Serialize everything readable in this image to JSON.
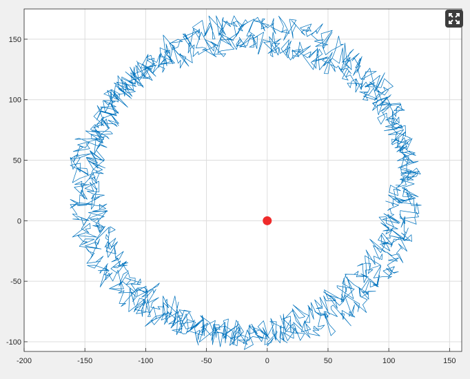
{
  "chart_data": {
    "type": "line",
    "title": "",
    "xlabel": "",
    "ylabel": "",
    "xlim": [
      -200,
      160
    ],
    "ylim": [
      -108,
      175
    ],
    "xticks": [
      -200,
      -150,
      -100,
      -50,
      0,
      50,
      100,
      150
    ],
    "yticks": [
      -100,
      -50,
      0,
      50,
      100,
      150
    ],
    "xtick_labels": [
      "-200",
      "-150",
      "-100",
      "-50",
      "0",
      "50",
      "100",
      "150"
    ],
    "ytick_labels": [
      "-100",
      "-50",
      "0",
      "50",
      "100",
      "150"
    ],
    "grid": true,
    "series": [
      {
        "style": "noisy random-walk trajectory forming a ring",
        "color": "#0072bd",
        "center": [
          -18,
          32
        ],
        "inner_radius_x": 120,
        "inner_radius_y": 110,
        "outer_radius_x": 145,
        "outer_radius_y": 140,
        "x_range": [
          -162,
          128
        ],
        "y_range": [
          -110,
          175
        ]
      },
      {
        "style": "marker",
        "color": "#ef2b2b",
        "x": [
          0
        ],
        "y": [
          0
        ]
      }
    ]
  },
  "toolbar": {
    "expand_icon": "expand-icon"
  }
}
